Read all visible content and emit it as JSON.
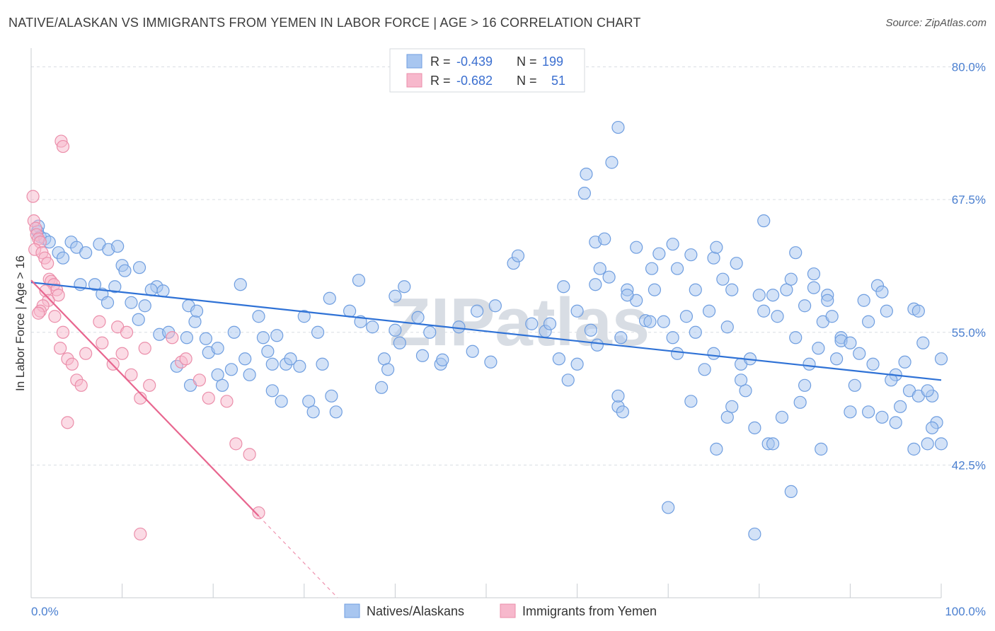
{
  "title": "NATIVE/ALASKAN VS IMMIGRANTS FROM YEMEN IN LABOR FORCE | AGE > 16 CORRELATION CHART",
  "source": "Source: ZipAtlas.com",
  "watermark": "ZIPatlas",
  "colors": {
    "blue_fill": "#a8c6f0",
    "blue_stroke": "#6f9ee0",
    "blue_line": "#2f72d6",
    "pink_fill": "#f7b8cc",
    "pink_stroke": "#eb8eaa",
    "pink_line": "#e8668f",
    "grid": "#d9dde3",
    "axis_text": "#4a7fd0"
  },
  "legend_top": [
    {
      "r_label": "R =",
      "r_value": "-0.439",
      "n_label": "N =",
      "n_value": "199",
      "swatch": "blue"
    },
    {
      "r_label": "R =",
      "r_value": "-0.682",
      "n_label": "N =",
      "n_value": "51",
      "swatch": "pink"
    }
  ],
  "legend_bottom": [
    "Natives/Alaskans",
    "Immigrants from Yemen"
  ],
  "chart_data": {
    "type": "scatter",
    "title": "NATIVE/ALASKAN VS IMMIGRANTS FROM YEMEN IN LABOR FORCE | AGE > 16 CORRELATION CHART",
    "xlabel": "",
    "ylabel": "In Labor Force | Age > 16",
    "xlim": [
      0,
      100
    ],
    "ylim": [
      30,
      81.5
    ],
    "x_tick_labels": [
      "0.0%",
      "100.0%"
    ],
    "y_ticks": [
      42.5,
      55.0,
      67.5,
      80.0
    ],
    "y_tick_labels": [
      "42.5%",
      "55.0%",
      "67.5%",
      "80.0%"
    ],
    "grid": true,
    "legend_position": "top-center",
    "series": [
      {
        "name": "Natives/Alaskans",
        "color": "#a8c6f0",
        "trend": {
          "x": [
            0,
            100
          ],
          "y": [
            59.7,
            50.5
          ]
        },
        "points": [
          [
            0.8,
            65.0
          ],
          [
            0.7,
            64.5
          ],
          [
            1.0,
            64.0
          ],
          [
            1.5,
            63.8
          ],
          [
            2.0,
            63.5
          ],
          [
            3.0,
            62.5
          ],
          [
            4.4,
            63.5
          ],
          [
            3.5,
            62.0
          ],
          [
            5.0,
            63.0
          ],
          [
            6.0,
            62.5
          ],
          [
            7.5,
            63.3
          ],
          [
            8.5,
            62.8
          ],
          [
            9.5,
            63.1
          ],
          [
            10.0,
            61.3
          ],
          [
            10.3,
            60.8
          ],
          [
            11.9,
            61.1
          ],
          [
            5.4,
            59.5
          ],
          [
            7.0,
            59.5
          ],
          [
            7.8,
            58.6
          ],
          [
            8.4,
            57.8
          ],
          [
            11.0,
            57.8
          ],
          [
            12.5,
            57.5
          ],
          [
            9.2,
            59.3
          ],
          [
            13.8,
            59.3
          ],
          [
            13.2,
            59.0
          ],
          [
            14.5,
            58.9
          ],
          [
            11.8,
            56.2
          ],
          [
            14.1,
            54.8
          ],
          [
            15.1,
            55.0
          ],
          [
            17.1,
            54.5
          ],
          [
            17.3,
            57.5
          ],
          [
            18.0,
            56.0
          ],
          [
            19.2,
            54.4
          ],
          [
            19.5,
            53.1
          ],
          [
            18.2,
            57.0
          ],
          [
            22.3,
            55.0
          ],
          [
            20.5,
            53.5
          ],
          [
            22.0,
            51.5
          ],
          [
            20.5,
            51.0
          ],
          [
            21.0,
            50.0
          ],
          [
            17.5,
            50.0
          ],
          [
            16.0,
            51.8
          ],
          [
            23.5,
            52.5
          ],
          [
            24.0,
            51.0
          ],
          [
            23.0,
            59.5
          ],
          [
            25.0,
            56.5
          ],
          [
            25.5,
            54.5
          ],
          [
            26.0,
            53.2
          ],
          [
            26.5,
            52.0
          ],
          [
            27.0,
            54.7
          ],
          [
            28.0,
            52.0
          ],
          [
            28.5,
            52.5
          ],
          [
            26.5,
            49.5
          ],
          [
            27.5,
            48.5
          ],
          [
            29.5,
            51.8
          ],
          [
            30.5,
            48.5
          ],
          [
            31.0,
            47.5
          ],
          [
            32.0,
            52.0
          ],
          [
            33.0,
            49.0
          ],
          [
            33.5,
            47.5
          ],
          [
            30.0,
            56.5
          ],
          [
            31.5,
            55.0
          ],
          [
            32.8,
            58.2
          ],
          [
            35.0,
            57.0
          ],
          [
            36.2,
            56.0
          ],
          [
            37.5,
            55.5
          ],
          [
            38.5,
            49.8
          ],
          [
            38.8,
            52.5
          ],
          [
            39.2,
            51.5
          ],
          [
            40.0,
            55.2
          ],
          [
            40.5,
            54.0
          ],
          [
            36.0,
            59.9
          ],
          [
            40.0,
            58.4
          ],
          [
            41.0,
            59.3
          ],
          [
            42.5,
            56.4
          ],
          [
            43.0,
            52.8
          ],
          [
            43.8,
            55.0
          ],
          [
            45.0,
            52.0
          ],
          [
            45.2,
            52.4
          ],
          [
            47.0,
            55.5
          ],
          [
            48.5,
            53.2
          ],
          [
            49.0,
            57.0
          ],
          [
            50.5,
            52.2
          ],
          [
            51.0,
            57.5
          ],
          [
            53.0,
            61.5
          ],
          [
            53.5,
            62.2
          ],
          [
            55.0,
            55.8
          ],
          [
            56.5,
            55.1
          ],
          [
            57.0,
            55.8
          ],
          [
            58.0,
            52.5
          ],
          [
            58.5,
            59.3
          ],
          [
            59.0,
            50.5
          ],
          [
            60.0,
            52.0
          ],
          [
            61.5,
            55.2
          ],
          [
            62.0,
            59.5
          ],
          [
            62.2,
            53.8
          ],
          [
            62.5,
            61.0
          ],
          [
            63.5,
            60.2
          ],
          [
            64.5,
            48.0
          ],
          [
            64.5,
            49.0
          ],
          [
            64.8,
            54.5
          ],
          [
            65.5,
            59.0
          ],
          [
            66.5,
            58.0
          ],
          [
            67.5,
            56.1
          ],
          [
            68.0,
            56.0
          ],
          [
            68.5,
            59.0
          ],
          [
            69.5,
            56.0
          ],
          [
            70.5,
            54.5
          ],
          [
            71.0,
            53.0
          ],
          [
            72.0,
            56.5
          ],
          [
            72.5,
            48.5
          ],
          [
            73.0,
            55.0
          ],
          [
            74.5,
            57.0
          ],
          [
            75.0,
            53.0
          ],
          [
            76.5,
            55.5
          ],
          [
            77.0,
            59.0
          ],
          [
            77.5,
            61.5
          ],
          [
            78.0,
            52.0
          ],
          [
            78.5,
            49.5
          ],
          [
            79.0,
            52.5
          ],
          [
            80.0,
            58.5
          ],
          [
            80.5,
            57.0
          ],
          [
            81.5,
            58.5
          ],
          [
            82.0,
            56.5
          ],
          [
            83.0,
            59.0
          ],
          [
            83.5,
            60.0
          ],
          [
            84.0,
            54.5
          ],
          [
            85.0,
            57.5
          ],
          [
            85.5,
            52.0
          ],
          [
            86.0,
            59.2
          ],
          [
            86.8,
            44.0
          ],
          [
            87.0,
            56.0
          ],
          [
            87.5,
            58.5
          ],
          [
            88.0,
            56.5
          ],
          [
            89.0,
            54.5
          ],
          [
            90.0,
            47.5
          ],
          [
            91.0,
            53.0
          ],
          [
            92.0,
            56.0
          ],
          [
            93.0,
            59.4
          ],
          [
            93.5,
            58.8
          ],
          [
            94.0,
            57.0
          ],
          [
            95.0,
            51.0
          ],
          [
            96.0,
            52.2
          ],
          [
            97.0,
            57.2
          ],
          [
            97.5,
            57.0
          ],
          [
            98.0,
            54.0
          ],
          [
            99.0,
            49.0
          ],
          [
            99.5,
            46.5
          ],
          [
            100.0,
            52.5
          ],
          [
            84.5,
            48.4
          ],
          [
            60.8,
            68.1
          ],
          [
            61.0,
            69.9
          ],
          [
            64.5,
            74.3
          ],
          [
            63.8,
            71.0
          ],
          [
            62.0,
            63.5
          ],
          [
            63.0,
            63.8
          ],
          [
            70.5,
            63.3
          ],
          [
            72.5,
            62.3
          ],
          [
            75.0,
            62.0
          ],
          [
            75.3,
            63.0
          ],
          [
            76.0,
            60.0
          ],
          [
            80.5,
            65.5
          ],
          [
            84.0,
            62.5
          ],
          [
            86.0,
            60.5
          ],
          [
            87.5,
            58.0
          ],
          [
            89.0,
            54.2
          ],
          [
            90.0,
            54.0
          ],
          [
            91.5,
            58.0
          ],
          [
            92.5,
            52.0
          ],
          [
            94.5,
            50.5
          ],
          [
            95.5,
            48.0
          ],
          [
            96.5,
            49.5
          ],
          [
            97.5,
            49.0
          ],
          [
            98.5,
            49.5
          ],
          [
            99.0,
            46.0
          ],
          [
            65.0,
            47.5
          ],
          [
            65.5,
            58.5
          ],
          [
            66.5,
            63.0
          ],
          [
            68.2,
            61.0
          ],
          [
            69.0,
            62.4
          ],
          [
            71.0,
            61.0
          ],
          [
            73.0,
            59.0
          ],
          [
            74.0,
            51.5
          ],
          [
            75.3,
            44.0
          ],
          [
            76.5,
            47.0
          ],
          [
            78.0,
            50.5
          ],
          [
            79.5,
            46.0
          ],
          [
            81.0,
            44.5
          ],
          [
            81.5,
            44.5
          ],
          [
            82.5,
            47.0
          ],
          [
            85.0,
            50.0
          ],
          [
            86.5,
            53.5
          ],
          [
            88.5,
            52.5
          ],
          [
            90.5,
            50.0
          ],
          [
            92.0,
            47.5
          ],
          [
            93.5,
            47.0
          ],
          [
            95.0,
            46.5
          ],
          [
            97.0,
            44.0
          ],
          [
            98.5,
            44.5
          ],
          [
            100.0,
            44.5
          ],
          [
            77.0,
            48.0
          ],
          [
            70.0,
            38.5
          ],
          [
            79.5,
            36.0
          ],
          [
            83.5,
            40.0
          ],
          [
            60.0,
            57.0
          ]
        ]
      },
      {
        "name": "Immigrants from Yemen",
        "color": "#f7b8cc",
        "trend": {
          "x": [
            0,
            25
          ],
          "y": [
            59.9,
            37.7
          ]
        },
        "points": [
          [
            0.2,
            67.8
          ],
          [
            0.3,
            65.5
          ],
          [
            0.5,
            64.8
          ],
          [
            0.6,
            64.2
          ],
          [
            0.8,
            63.8
          ],
          [
            1.0,
            63.5
          ],
          [
            0.4,
            62.8
          ],
          [
            1.2,
            62.5
          ],
          [
            1.5,
            62.0
          ],
          [
            1.8,
            61.5
          ],
          [
            2.0,
            60.0
          ],
          [
            2.2,
            59.8
          ],
          [
            2.5,
            59.5
          ],
          [
            2.8,
            59.0
          ],
          [
            3.0,
            58.5
          ],
          [
            1.6,
            58.9
          ],
          [
            1.9,
            58.0
          ],
          [
            1.3,
            57.5
          ],
          [
            1.0,
            57.0
          ],
          [
            0.8,
            56.8
          ],
          [
            2.6,
            56.5
          ],
          [
            3.5,
            55.0
          ],
          [
            3.2,
            53.5
          ],
          [
            4.0,
            52.5
          ],
          [
            4.5,
            52.0
          ],
          [
            5.0,
            50.5
          ],
          [
            5.5,
            50.0
          ],
          [
            6.0,
            53.0
          ],
          [
            7.5,
            56.0
          ],
          [
            7.8,
            54.0
          ],
          [
            9.0,
            52.0
          ],
          [
            9.5,
            55.5
          ],
          [
            10.0,
            53.0
          ],
          [
            10.5,
            55.0
          ],
          [
            11.0,
            51.0
          ],
          [
            12.0,
            48.8
          ],
          [
            12.5,
            53.5
          ],
          [
            13.0,
            50.0
          ],
          [
            15.5,
            54.5
          ],
          [
            16.5,
            52.2
          ],
          [
            17.0,
            52.5
          ],
          [
            18.5,
            50.5
          ],
          [
            19.5,
            48.8
          ],
          [
            21.5,
            48.5
          ],
          [
            22.5,
            44.5
          ],
          [
            24.0,
            43.5
          ],
          [
            25.0,
            38.0
          ],
          [
            12.0,
            36.0
          ],
          [
            3.3,
            73.0
          ],
          [
            3.5,
            72.5
          ],
          [
            4.0,
            46.5
          ]
        ]
      }
    ]
  }
}
